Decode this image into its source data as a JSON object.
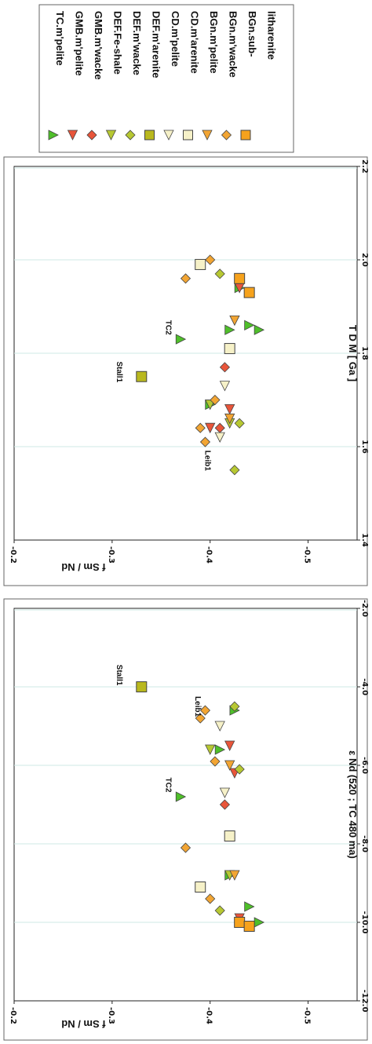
{
  "colors": {
    "TC": "#4fbf2a",
    "GMB": "#e8553a",
    "DEF": "#b7c832",
    "CD": "#f6f1c8",
    "BGn": "#f2a533",
    "BGn_sub": "#f6a21c",
    "DEF_arenite": "#b9b81e",
    "gridline": "#cfe8e4",
    "stroke": "#444444"
  },
  "legend": [
    {
      "label": "TC.m'pelite",
      "marker": "triangle-down",
      "color": "#4fbf2a"
    },
    {
      "label": "GMB.m'pelite",
      "marker": "triangle-right",
      "color": "#e8553a"
    },
    {
      "label": "GMB.m'wacke",
      "marker": "diamond",
      "color": "#e8553a"
    },
    {
      "label": "DEF.Fe-shale",
      "marker": "triangle-right",
      "color": "#b7c832"
    },
    {
      "label": "DEF.m'wacke",
      "marker": "diamond",
      "color": "#b7c832"
    },
    {
      "label": "DEF.m'arenite",
      "marker": "square",
      "color": "#b9b81e"
    },
    {
      "label": "CD.m'pelite",
      "marker": "triangle-right",
      "color": "#f6f1c8"
    },
    {
      "label": "CD.m'arenite",
      "marker": "square",
      "color": "#f6f1c8"
    },
    {
      "label": "BGn.m'pelite",
      "marker": "triangle-right",
      "color": "#f2a533"
    },
    {
      "label": "BGn.m'wacke",
      "marker": "diamond",
      "color": "#f2a533"
    },
    {
      "label": "BGn.sub-",
      "marker": "square",
      "color": "#f6a21c"
    },
    {
      "label": "litharenite",
      "marker": "none",
      "color": ""
    }
  ],
  "chart_data": [
    {
      "type": "scatter",
      "xlabel": "T D M   [ Ga ]",
      "ylabel": "f Sm / Nd",
      "xlim": [
        1.4,
        2.2
      ],
      "ylim": [
        -0.5,
        -0.2
      ],
      "ylim_display": [
        -0.55,
        -0.2
      ],
      "xticks": [
        "1.4",
        "1.6",
        "1.8",
        "2.0",
        "2.2"
      ],
      "yticks": [
        "-0.2",
        "-0.3",
        "-0.4",
        "-0.5"
      ],
      "grid_x": [
        1.6,
        1.8,
        2.0
      ],
      "annotations": [
        {
          "text": "Stall1",
          "x": 1.76,
          "y": -0.305
        },
        {
          "text": "TC2",
          "x": 1.855,
          "y": -0.355
        },
        {
          "text": "Leib1",
          "x": 1.57,
          "y": -0.395
        }
      ],
      "series": [
        {
          "name": "TC.m'pelite",
          "marker": "triangle-down",
          "points": [
            [
              1.83,
              -0.37
            ],
            [
              1.85,
              -0.42
            ],
            [
              1.86,
              -0.44
            ],
            [
              1.85,
              -0.45
            ],
            [
              1.69,
              -0.4
            ],
            [
              1.94,
              -0.43
            ]
          ]
        },
        {
          "name": "GMB.m'pelite",
          "marker": "triangle-right",
          "points": [
            [
              1.68,
              -0.42
            ],
            [
              1.64,
              -0.4
            ],
            [
              1.94,
              -0.43
            ]
          ]
        },
        {
          "name": "GMB.m'wacke",
          "marker": "diamond",
          "points": [
            [
              1.77,
              -0.415
            ],
            [
              1.64,
              -0.41
            ]
          ]
        },
        {
          "name": "DEF.Fe-shale",
          "marker": "triangle-right",
          "points": [
            [
              1.69,
              -0.4
            ],
            [
              1.65,
              -0.42
            ]
          ]
        },
        {
          "name": "DEF.m'wacke",
          "marker": "diamond",
          "points": [
            [
              1.97,
              -0.41
            ],
            [
              1.55,
              -0.425
            ],
            [
              1.65,
              -0.43
            ]
          ]
        },
        {
          "name": "DEF.m'arenite",
          "marker": "square",
          "points": [
            [
              1.75,
              -0.33
            ]
          ]
        },
        {
          "name": "CD.m'pelite",
          "marker": "triangle-right",
          "points": [
            [
              1.73,
              -0.415
            ],
            [
              1.62,
              -0.41
            ]
          ]
        },
        {
          "name": "CD.m'arenite",
          "marker": "square",
          "points": [
            [
              1.81,
              -0.42
            ],
            [
              1.99,
              -0.39
            ]
          ]
        },
        {
          "name": "BGn.m'pelite",
          "marker": "triangle-right",
          "points": [
            [
              1.87,
              -0.425
            ],
            [
              1.66,
              -0.42
            ]
          ]
        },
        {
          "name": "BGn.m'wacke",
          "marker": "diamond",
          "points": [
            [
              1.96,
              -0.375
            ],
            [
              2.0,
              -0.4
            ],
            [
              1.64,
              -0.39
            ],
            [
              1.7,
              -0.405
            ],
            [
              1.61,
              -0.395
            ]
          ]
        },
        {
          "name": "BGn.sub-litharenite",
          "marker": "square",
          "points": [
            [
              1.96,
              -0.43
            ],
            [
              1.93,
              -0.44
            ]
          ]
        }
      ]
    },
    {
      "type": "scatter",
      "xlabel": "ε Nd  (520 ; TC 480 ma)",
      "ylabel": "f Sm / Nd",
      "xlim": [
        -12.0,
        -2.0
      ],
      "ylim": [
        -0.5,
        -0.2
      ],
      "ylim_display": [
        -0.55,
        -0.2
      ],
      "xticks": [
        "-12.0",
        "-10.0",
        "-8.0",
        "-6.0",
        "-4.0",
        "-2.0"
      ],
      "yticks": [
        "-0.2",
        "-0.3",
        "-0.4",
        "-0.5"
      ],
      "grid_x": [
        -10.0,
        -8.0,
        -6.0,
        -4.0
      ],
      "annotations": [
        {
          "text": "Stall1",
          "x": -3.7,
          "y": -0.305
        },
        {
          "text": "TC2",
          "x": -6.5,
          "y": -0.355
        },
        {
          "text": "Leib1",
          "x": -4.5,
          "y": -0.385
        }
      ],
      "series": [
        {
          "name": "TC.m'pelite",
          "marker": "triangle-down",
          "points": [
            [
              -6.8,
              -0.37
            ],
            [
              -8.8,
              -0.42
            ],
            [
              -9.6,
              -0.44
            ],
            [
              -10.0,
              -0.45
            ],
            [
              -5.6,
              -0.41
            ],
            [
              -4.6,
              -0.425
            ]
          ]
        },
        {
          "name": "GMB.m'pelite",
          "marker": "triangle-right",
          "points": [
            [
              -5.5,
              -0.42
            ],
            [
              -6.2,
              -0.425
            ],
            [
              -9.9,
              -0.43
            ]
          ]
        },
        {
          "name": "GMB.m'wacke",
          "marker": "diamond",
          "points": [
            [
              -7.0,
              -0.415
            ]
          ]
        },
        {
          "name": "DEF.Fe-shale",
          "marker": "triangle-right",
          "points": [
            [
              -5.6,
              -0.4
            ],
            [
              -8.8,
              -0.42
            ]
          ]
        },
        {
          "name": "DEF.m'wacke",
          "marker": "diamond",
          "points": [
            [
              -9.7,
              -0.41
            ],
            [
              -4.5,
              -0.425
            ],
            [
              -6.1,
              -0.43
            ]
          ]
        },
        {
          "name": "DEF.m'arenite",
          "marker": "square",
          "points": [
            [
              -4.0,
              -0.33
            ]
          ]
        },
        {
          "name": "CD.m'pelite",
          "marker": "triangle-right",
          "points": [
            [
              -5.0,
              -0.41
            ],
            [
              -6.7,
              -0.415
            ]
          ]
        },
        {
          "name": "CD.m'arenite",
          "marker": "square",
          "points": [
            [
              -7.8,
              -0.42
            ],
            [
              -9.1,
              -0.39
            ]
          ]
        },
        {
          "name": "BGn.m'pelite",
          "marker": "triangle-right",
          "points": [
            [
              -6.0,
              -0.42
            ],
            [
              -8.8,
              -0.425
            ]
          ]
        },
        {
          "name": "BGn.m'wacke",
          "marker": "diamond",
          "points": [
            [
              -8.1,
              -0.375
            ],
            [
              -9.4,
              -0.4
            ],
            [
              -4.8,
              -0.39
            ],
            [
              -5.9,
              -0.405
            ],
            [
              -4.6,
              -0.395
            ]
          ]
        },
        {
          "name": "BGn.sub-litharenite",
          "marker": "square",
          "points": [
            [
              -10.0,
              -0.43
            ],
            [
              -10.1,
              -0.44
            ]
          ]
        }
      ]
    }
  ]
}
